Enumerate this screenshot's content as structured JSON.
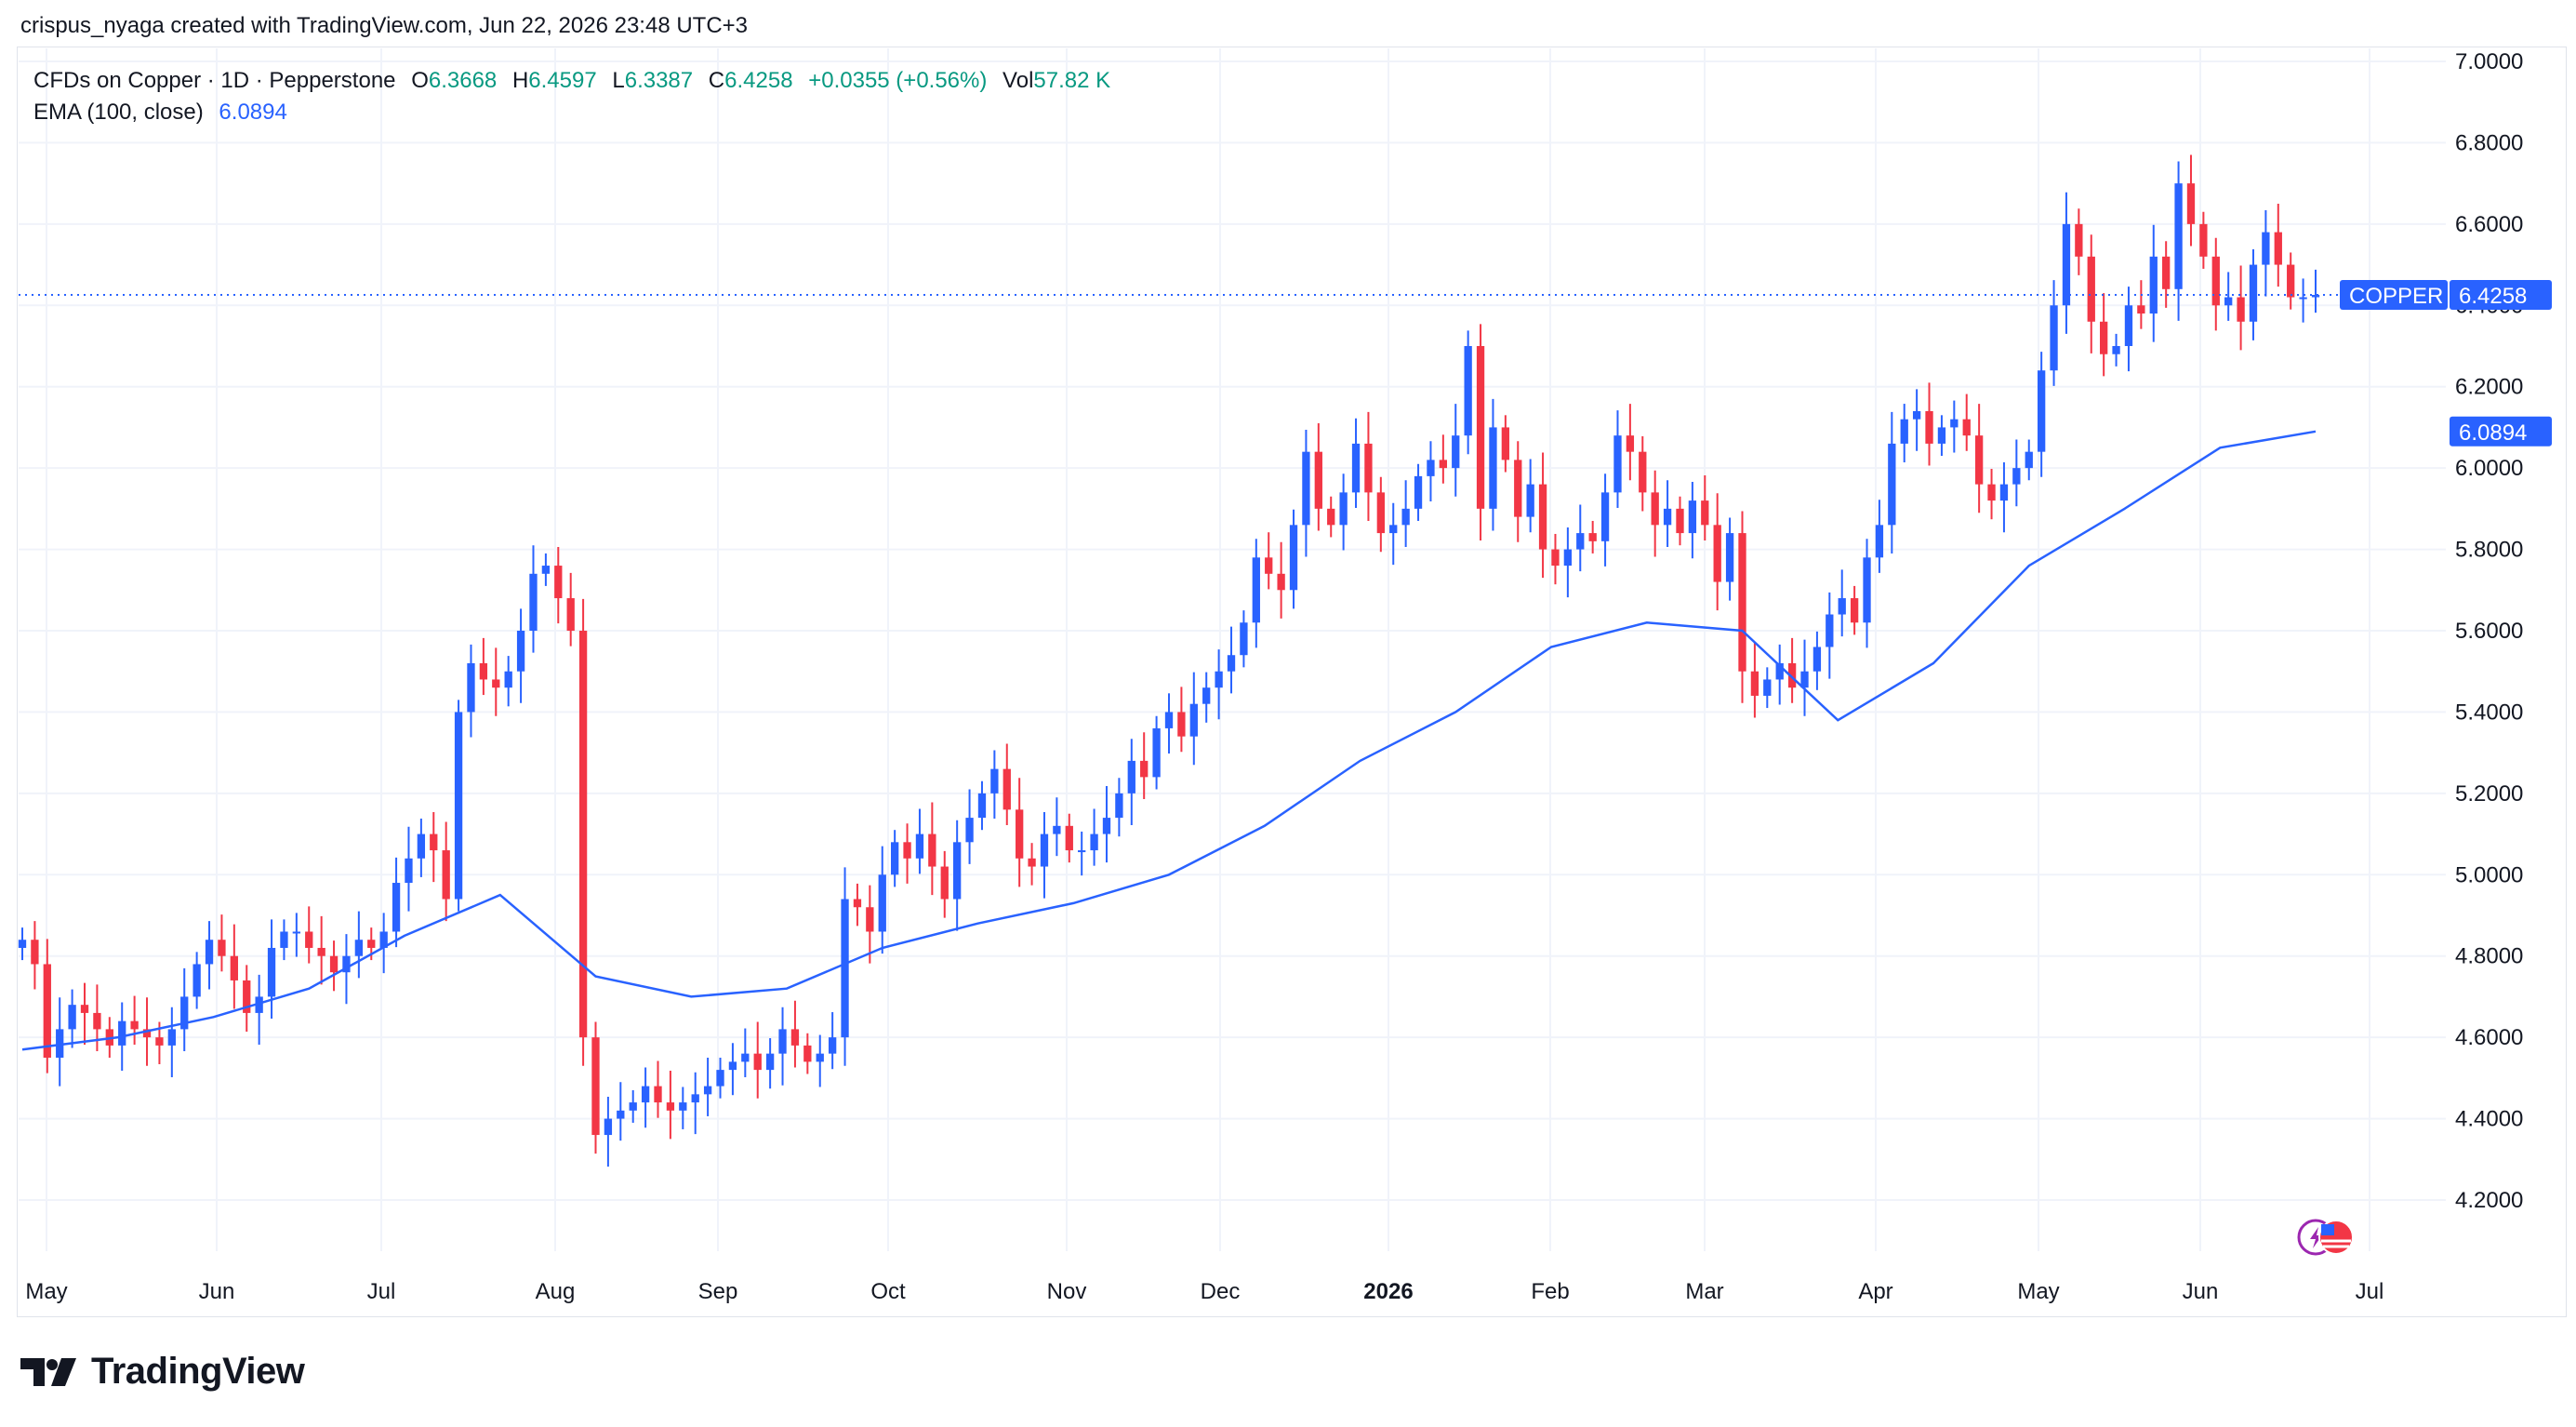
{
  "header": {
    "author_line": "crispus_nyaga created with TradingView.com, Jun 22, 2026 23:48 UTC+3"
  },
  "legend": {
    "symbol": "CFDs on Copper · 1D · Pepperstone",
    "o_label": "O",
    "o_value": "6.3668",
    "h_label": "H",
    "h_value": "6.4597",
    "l_label": "L",
    "l_value": "6.3387",
    "c_label": "C",
    "c_value": "6.4258",
    "change": "+0.0355 (+0.56%)",
    "vol_label": "Vol",
    "vol_value": "57.82 K",
    "ema_label": "EMA (100, close)",
    "ema_value": "6.0894"
  },
  "badges": {
    "symbol": "COPPER",
    "price": "6.4258",
    "ema": "6.0894"
  },
  "footer": {
    "brand": "TradingView"
  },
  "colors": {
    "up": "#2962ff",
    "down": "#f23645",
    "ema": "#2962ff",
    "grid": "#f0f3fa",
    "text": "#131722",
    "value_green": "#089981"
  },
  "icons": [
    "tradingview-logo-icon",
    "flag-icon",
    "lightning-icon"
  ],
  "chart_data": {
    "type": "candlestick",
    "title": "CFDs on Copper · 1D · Pepperstone",
    "ylim": [
      4.05,
      7.0
    ],
    "y_ticks": [
      "7.0000",
      "6.8000",
      "6.6000",
      "6.4000",
      "6.2000",
      "6.0000",
      "5.8000",
      "5.6000",
      "5.4000",
      "5.2000",
      "5.0000",
      "4.8000",
      "4.6000",
      "4.4000",
      "4.2000"
    ],
    "x_ticks": [
      "May",
      "Jun",
      "Jul",
      "Aug",
      "Sep",
      "Oct",
      "Nov",
      "Dec",
      "2026",
      "Feb",
      "Mar",
      "Apr",
      "May",
      "Jun",
      "Jul"
    ],
    "grid": true,
    "last_price": 6.4258,
    "series": [
      {
        "name": "CFDs on Copper",
        "kind": "ohlc_approx",
        "close": [
          4.84,
          4.78,
          4.55,
          4.62,
          4.68,
          4.66,
          4.62,
          4.58,
          4.64,
          4.62,
          4.6,
          4.58,
          4.62,
          4.7,
          4.78,
          4.84,
          4.8,
          4.74,
          4.66,
          4.7,
          4.82,
          4.86,
          4.86,
          4.82,
          4.8,
          4.76,
          4.8,
          4.84,
          4.82,
          4.86,
          4.98,
          5.04,
          5.1,
          5.06,
          4.94,
          5.4,
          5.52,
          5.48,
          5.46,
          5.5,
          5.6,
          5.74,
          5.76,
          5.68,
          5.6,
          4.6,
          4.36,
          4.4,
          4.42,
          4.44,
          4.48,
          4.44,
          4.42,
          4.44,
          4.46,
          4.48,
          4.52,
          4.54,
          4.56,
          4.52,
          4.56,
          4.62,
          4.58,
          4.54,
          4.56,
          4.6,
          4.94,
          4.92,
          4.86,
          5.0,
          5.08,
          5.04,
          5.1,
          5.02,
          4.94,
          5.08,
          5.14,
          5.2,
          5.26,
          5.16,
          5.04,
          5.02,
          5.1,
          5.12,
          5.06,
          5.06,
          5.1,
          5.14,
          5.2,
          5.28,
          5.24,
          5.36,
          5.4,
          5.34,
          5.42,
          5.46,
          5.5,
          5.54,
          5.62,
          5.78,
          5.74,
          5.7,
          5.86,
          6.04,
          5.9,
          5.86,
          5.94,
          6.06,
          5.94,
          5.84,
          5.86,
          5.9,
          5.98,
          6.02,
          6.0,
          6.08,
          6.3,
          5.9,
          6.1,
          6.02,
          5.88,
          5.96,
          5.8,
          5.76,
          5.8,
          5.84,
          5.82,
          5.94,
          6.08,
          6.04,
          5.94,
          5.86,
          5.9,
          5.84,
          5.92,
          5.86,
          5.72,
          5.84,
          5.5,
          5.44,
          5.48,
          5.52,
          5.46,
          5.5,
          5.56,
          5.64,
          5.68,
          5.62,
          5.78,
          5.86,
          6.06,
          6.12,
          6.14,
          6.06,
          6.1,
          6.12,
          6.08,
          5.96,
          5.92,
          5.96,
          6.0,
          6.04,
          6.24,
          6.4,
          6.6,
          6.52,
          6.36,
          6.28,
          6.3,
          6.4,
          6.38,
          6.52,
          6.44,
          6.7,
          6.6,
          6.52,
          6.4,
          6.42,
          6.36,
          6.5,
          6.58,
          6.5,
          6.42,
          6.42,
          6.4258
        ]
      }
    ],
    "ema_series": [
      {
        "name": "EMA (100, close)",
        "values": [
          4.57,
          4.6,
          4.65,
          4.72,
          4.85,
          4.95,
          4.75,
          4.7,
          4.72,
          4.82,
          4.88,
          4.93,
          5.0,
          5.12,
          5.28,
          5.4,
          5.56,
          5.62,
          5.6,
          5.38,
          5.52,
          5.76,
          5.9,
          6.05,
          6.09
        ]
      }
    ]
  }
}
